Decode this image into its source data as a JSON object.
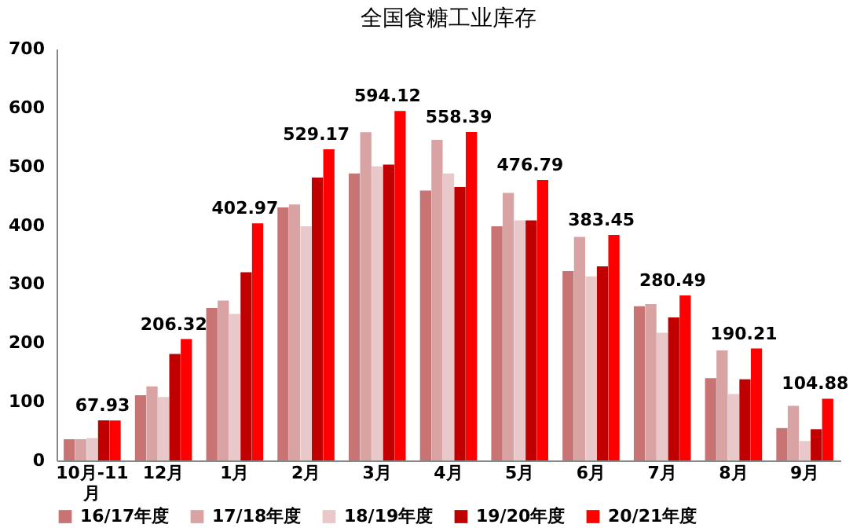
{
  "chart_data": {
    "type": "bar",
    "title": "全国食糖工业库存",
    "categories": [
      "10月-11月",
      "12月",
      "1月",
      "2月",
      "3月",
      "4月",
      "5月",
      "6月",
      "7月",
      "8月",
      "9月"
    ],
    "series": [
      {
        "name": "16/17年度",
        "color": "#c87474",
        "values": [
          36,
          111,
          259,
          430,
          488,
          459,
          398,
          322,
          262,
          140,
          55
        ]
      },
      {
        "name": "17/18年度",
        "color": "#d9a3a3",
        "values": [
          36,
          126,
          272,
          435,
          558,
          545,
          455,
          380,
          266,
          187,
          93
        ]
      },
      {
        "name": "18/19年度",
        "color": "#e8c8c8",
        "values": [
          38,
          108,
          249,
          398,
          500,
          488,
          408,
          313,
          217,
          113,
          33
        ]
      },
      {
        "name": "19/20年度",
        "color": "#c00000",
        "values": [
          68,
          181,
          320,
          481,
          503,
          465,
          408,
          330,
          243,
          138,
          53
        ]
      },
      {
        "name": "20/21年度",
        "color": "#ff0000",
        "values": [
          67.93,
          206.32,
          402.97,
          529.17,
          594.12,
          558.39,
          476.79,
          383.45,
          280.49,
          190.21,
          104.88
        ],
        "value_labels": [
          "67.93",
          "206.32",
          "402.97",
          "529.17",
          "594.12",
          "558.39",
          "476.79",
          "383.45",
          "280.49",
          "190.21",
          "104.88"
        ]
      }
    ],
    "ylim": [
      0,
      700
    ],
    "yticks": [
      0,
      100,
      200,
      300,
      400,
      500,
      600,
      700
    ],
    "grid": false,
    "legend": "bottom"
  }
}
